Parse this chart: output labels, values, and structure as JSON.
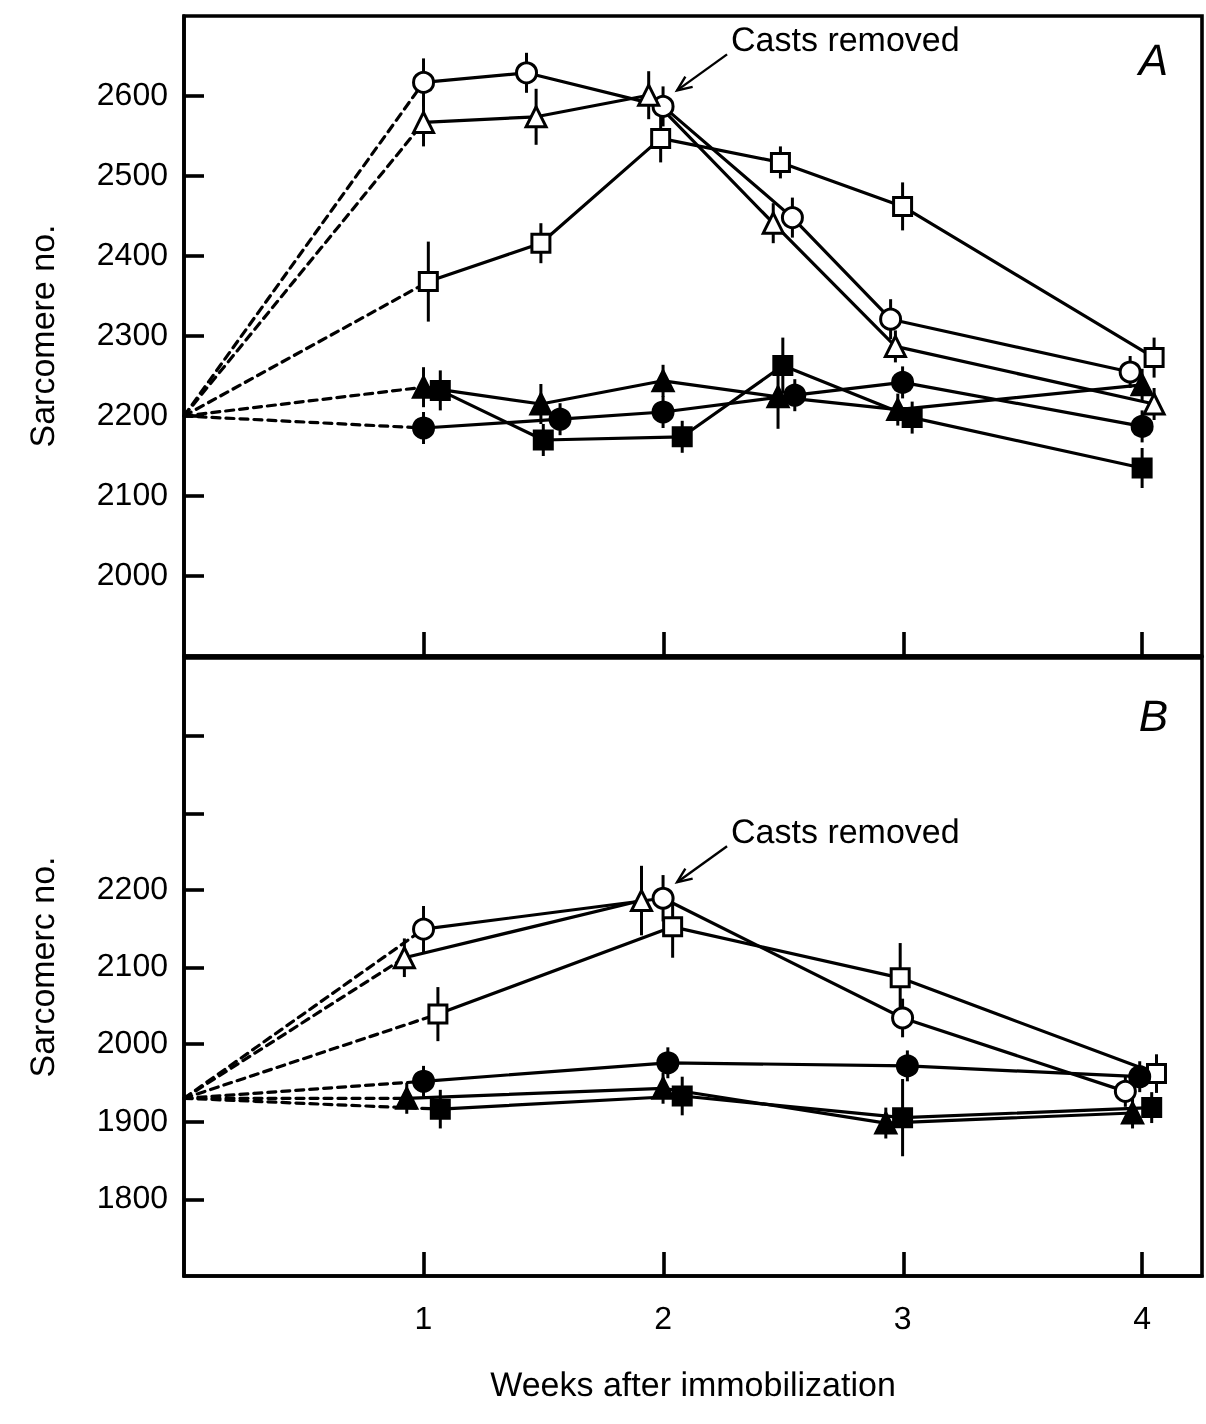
{
  "chart_data": [
    {
      "type": "line",
      "title": "A",
      "ylabel": "Sarcomere no.",
      "annotations": [
        {
          "text": "Casts removed",
          "x": 2.0,
          "y": 2587
        }
      ],
      "xlim": [
        0,
        4.25
      ],
      "xticks": [
        {
          "value": 1,
          "label": null
        },
        {
          "value": 2,
          "label": null
        },
        {
          "value": 3,
          "label": null
        },
        {
          "value": 4,
          "label": null
        }
      ],
      "ylim": [
        1900,
        2700
      ],
      "yticks": [
        2000,
        2100,
        2200,
        2300,
        2400,
        2500,
        2600
      ],
      "tick_labels": "y",
      "grid": false,
      "series": [
        {
          "x": [
            0,
            1.0
          ],
          "values": [
            2200,
            2617
          ],
          "color": "#000000",
          "line_style": "dashed"
        },
        {
          "x": [
            0,
            1.0
          ],
          "values": [
            2200,
            2567
          ],
          "color": "#000000",
          "line_style": "dashed"
        },
        {
          "x": [
            0,
            1.02
          ],
          "values": [
            2200,
            2368
          ],
          "color": "#000000",
          "line_style": "dashed"
        },
        {
          "x": [
            0,
            1.0
          ],
          "values": [
            2200,
            2185
          ],
          "color": "#000000",
          "line_style": "dashed"
        },
        {
          "x": [
            0,
            1.0
          ],
          "values": [
            2200,
            2236
          ],
          "color": "#000000",
          "line_style": "dashed"
        },
        {
          "x": [
            1.0,
            1.43,
            2.0,
            2.54,
            2.95,
            3.95
          ],
          "values": [
            2617,
            2629,
            2587,
            2448,
            2321,
            2255
          ],
          "errors": [
            30,
            25,
            25,
            25,
            25,
            20
          ],
          "color": "#000000",
          "colors": [
            "#ffffff",
            "#ffffff",
            "#ffffff",
            "#ffffff",
            "#ffffff",
            "#ffffff"
          ],
          "marker": "circle",
          "line_style": "solid"
        },
        {
          "x": [
            1.0,
            1.47,
            1.94,
            2.46,
            2.97,
            4.05
          ],
          "values": [
            2567,
            2574,
            2601,
            2441,
            2287,
            2215
          ],
          "errors": [
            30,
            35,
            30,
            25,
            20,
            20
          ],
          "color": "#000000",
          "colors": [
            "#ffffff",
            "#ffffff",
            "#ffffff",
            "#ffffff",
            "#ffffff",
            "#ffffff"
          ],
          "marker": "triangle",
          "line_style": "solid"
        },
        {
          "x": [
            1.02,
            1.49,
            1.99,
            2.49,
            3.0,
            4.05
          ],
          "values": [
            2368,
            2416,
            2547,
            2517,
            2462,
            2273
          ],
          "errors": [
            50,
            25,
            30,
            20,
            30,
            25
          ],
          "color": "#000000",
          "colors": [
            "#ffffff",
            "#ffffff",
            "#ffffff",
            "#ffffff",
            "#ffffff",
            "#ffffff"
          ],
          "marker": "square",
          "line_style": "solid"
        },
        {
          "x": [
            1.0,
            1.57,
            2.0,
            2.55,
            3.0,
            4.0
          ],
          "values": [
            2185,
            2196,
            2205,
            2226,
            2242,
            2187
          ],
          "errors": [
            20,
            20,
            20,
            20,
            20,
            20
          ],
          "color": "#000000",
          "marker": "circle",
          "line_style": "solid"
        },
        {
          "x": [
            1.0,
            1.49,
            2.0,
            2.48,
            2.98,
            4.0
          ],
          "values": [
            2236,
            2215,
            2244,
            2224,
            2208,
            2239
          ],
          "errors": [
            25,
            25,
            20,
            40,
            20,
            20
          ],
          "color": "#000000",
          "marker": "triangle",
          "line_style": "solid"
        },
        {
          "x": [
            1.07,
            1.5,
            2.08,
            2.5,
            3.04,
            4.0
          ],
          "values": [
            2232,
            2170,
            2174,
            2263,
            2198,
            2135
          ],
          "errors": [
            25,
            20,
            20,
            35,
            20,
            25
          ],
          "color": "#000000",
          "marker": "square",
          "line_style": "solid"
        }
      ]
    },
    {
      "type": "line",
      "title": "B",
      "xlabel": "Weeks after immobilization",
      "ylabel": "Sarcomerc no.",
      "annotations": [
        {
          "text": "Casts removed",
          "x": 2.0,
          "y": 2189
        }
      ],
      "xlim": [
        0,
        4.25
      ],
      "xticks": [
        1,
        2,
        3,
        4
      ],
      "ylim": [
        1700,
        2500
      ],
      "yticks": [
        1800,
        1900,
        2000,
        2100,
        2200,
        {
          "value": 2300,
          "label": null
        },
        {
          "value": 2400,
          "label": null
        }
      ],
      "grid": false,
      "series": [
        {
          "x": [
            0,
            1.0
          ],
          "values": [
            1930,
            2149
          ],
          "color": "#000000",
          "line_style": "dashed"
        },
        {
          "x": [
            0,
            0.92
          ],
          "values": [
            1930,
            2112
          ],
          "color": "#000000",
          "line_style": "dashed"
        },
        {
          "x": [
            0,
            1.06
          ],
          "values": [
            1930,
            2039
          ],
          "color": "#000000",
          "line_style": "dashed"
        },
        {
          "x": [
            0,
            1.0
          ],
          "values": [
            1930,
            1952
          ],
          "color": "#000000",
          "line_style": "dashed"
        },
        {
          "x": [
            0,
            0.93
          ],
          "values": [
            1930,
            1930
          ],
          "color": "#000000",
          "line_style": "dashed"
        },
        {
          "x": [
            0,
            1.07
          ],
          "values": [
            1930,
            1916
          ],
          "color": "#000000",
          "line_style": "dashed"
        },
        {
          "x": [
            1.0,
            2.0,
            3.0,
            3.93
          ],
          "values": [
            2149,
            2189,
            2034,
            1939
          ],
          "errors": [
            30,
            30,
            25,
            20
          ],
          "color": "#000000",
          "colors": [
            "#ffffff",
            "#ffffff",
            "#ffffff",
            "#ffffff"
          ],
          "marker": "circle",
          "line_style": "solid"
        },
        {
          "x": [
            0.92,
            1.91
          ],
          "values": [
            2112,
            2186
          ],
          "errors": [
            25,
            45
          ],
          "color": "#000000",
          "colors": [
            "#ffffff",
            "#ffffff"
          ],
          "marker": "triangle",
          "line_style": "solid"
        },
        {
          "x": [
            1.06,
            2.04,
            2.99,
            4.06
          ],
          "values": [
            2039,
            2152,
            2086,
            1962
          ],
          "errors": [
            35,
            40,
            45,
            25
          ],
          "color": "#000000",
          "colors": [
            "#ffffff",
            "#ffffff",
            "#ffffff",
            "#ffffff"
          ],
          "marker": "square",
          "line_style": "solid"
        },
        {
          "x": [
            1.0,
            2.02,
            3.02,
            3.99
          ],
          "values": [
            1952,
            1976,
            1972,
            1958
          ],
          "errors": [
            20,
            20,
            20,
            20
          ],
          "color": "#000000",
          "marker": "circle",
          "line_style": "solid"
        },
        {
          "x": [
            0.93,
            2.0,
            2.93,
            3.96
          ],
          "values": [
            1930,
            1943,
            1898,
            1911
          ],
          "errors": [
            20,
            20,
            20,
            20
          ],
          "color": "#000000",
          "marker": "triangle",
          "line_style": "solid"
        },
        {
          "x": [
            1.07,
            2.08,
            3.0,
            4.04
          ],
          "values": [
            1916,
            1933,
            1905,
            1918
          ],
          "errors": [
            25,
            25,
            50,
            20
          ],
          "color": "#000000",
          "marker": "square",
          "line_style": "solid"
        }
      ]
    }
  ]
}
